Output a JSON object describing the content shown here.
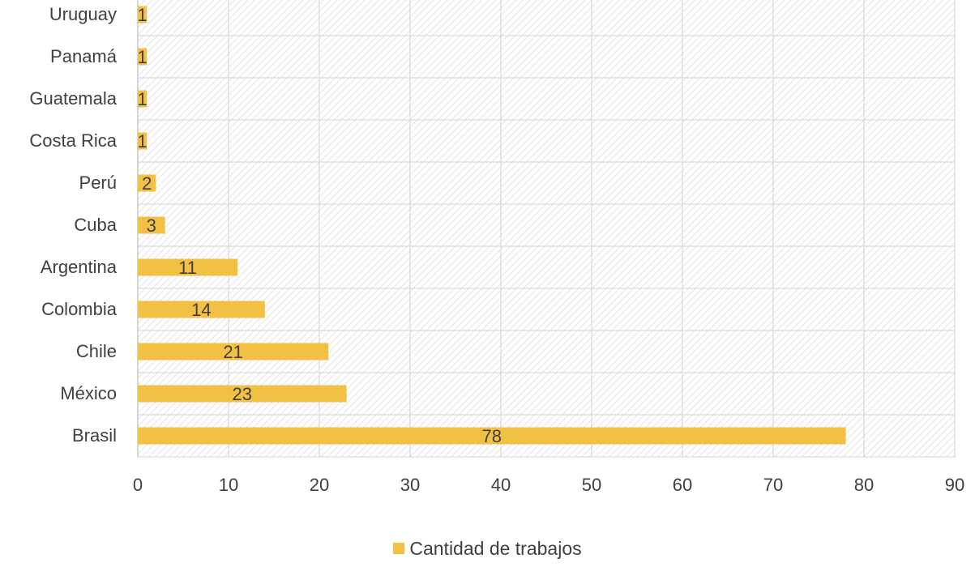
{
  "chart_data": {
    "type": "bar",
    "orientation": "horizontal",
    "categories": [
      "Uruguay",
      "Panamá",
      "Guatemala",
      "Costa Rica",
      "Perú",
      "Cuba",
      "Argentina",
      "Colombia",
      "Chile",
      "México",
      "Brasil"
    ],
    "series": [
      {
        "name": "Cantidad de trabajos",
        "values": [
          1,
          1,
          1,
          1,
          2,
          3,
          11,
          14,
          21,
          23,
          78
        ]
      }
    ],
    "xlim": [
      0,
      90
    ],
    "xticks": [
      0,
      10,
      20,
      30,
      40,
      50,
      60,
      70,
      80,
      90
    ],
    "grid": true,
    "legend_position": "bottom",
    "data_labels": true,
    "colors": {
      "bar": "#F2C042",
      "grid": "#d9d9d9",
      "hatch": "#dcdcdc",
      "text": "#404040"
    }
  }
}
